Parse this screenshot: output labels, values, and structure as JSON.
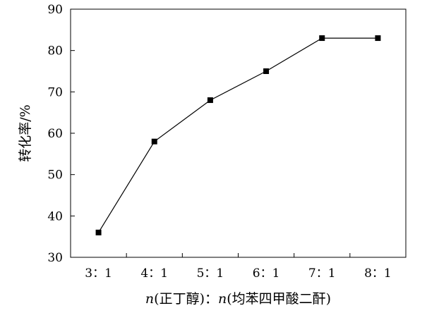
{
  "chart_data": {
    "type": "line",
    "categories": [
      "3：1",
      "4：1",
      "5：1",
      "6：1",
      "7：1",
      "8：1"
    ],
    "values": [
      36,
      58,
      68,
      75,
      83,
      83
    ],
    "ylabel": "转化率/%",
    "xlabel_italic_n": "n",
    "xlabel_part1": "(正丁醇)：",
    "xlabel_part2": "(均苯四甲酸二酐)",
    "ylim": [
      30,
      90
    ],
    "yticks": [
      30,
      40,
      50,
      60,
      70,
      80,
      90
    ],
    "grid": false,
    "legend": "none",
    "marker": "square",
    "line_color": "#000000"
  }
}
